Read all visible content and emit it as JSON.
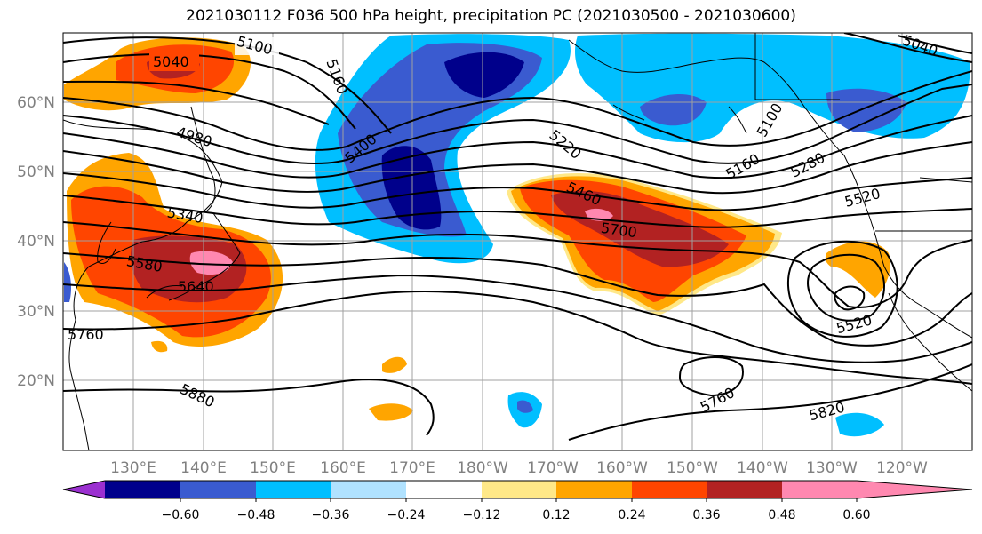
{
  "title": "2021030112 F036 500 hPa height, precipitation PC (2021030500 - 2021030600)",
  "map": {
    "lat_ticks": [
      "60°N",
      "50°N",
      "40°N",
      "30°N",
      "20°N"
    ],
    "lon_ticks": [
      "130°E",
      "140°E",
      "150°E",
      "160°E",
      "170°E",
      "180°W",
      "170°W",
      "160°W",
      "150°W",
      "140°W",
      "130°W",
      "120°W"
    ],
    "contour_labels": [
      "5100",
      "5040",
      "5160",
      "4980",
      "5400",
      "5340",
      "5580",
      "5640",
      "5760",
      "5880",
      "5220",
      "5460",
      "5700",
      "5160",
      "5280",
      "5520",
      "5520",
      "5760",
      "5820",
      "5040",
      "5100"
    ]
  },
  "colorbar": {
    "colors": [
      "#9b30d0",
      "#00008b",
      "#3a5bd0",
      "#00bfff",
      "#b0e2ff",
      "#ffffff",
      "#ffe888",
      "#ffa500",
      "#ff4500",
      "#b22222",
      "#ff88b0"
    ],
    "tick_labels": [
      "−0.60",
      "−0.48",
      "−0.36",
      "−0.24",
      "−0.12",
      "0.12",
      "0.24",
      "0.36",
      "0.48",
      "0.60"
    ]
  }
}
